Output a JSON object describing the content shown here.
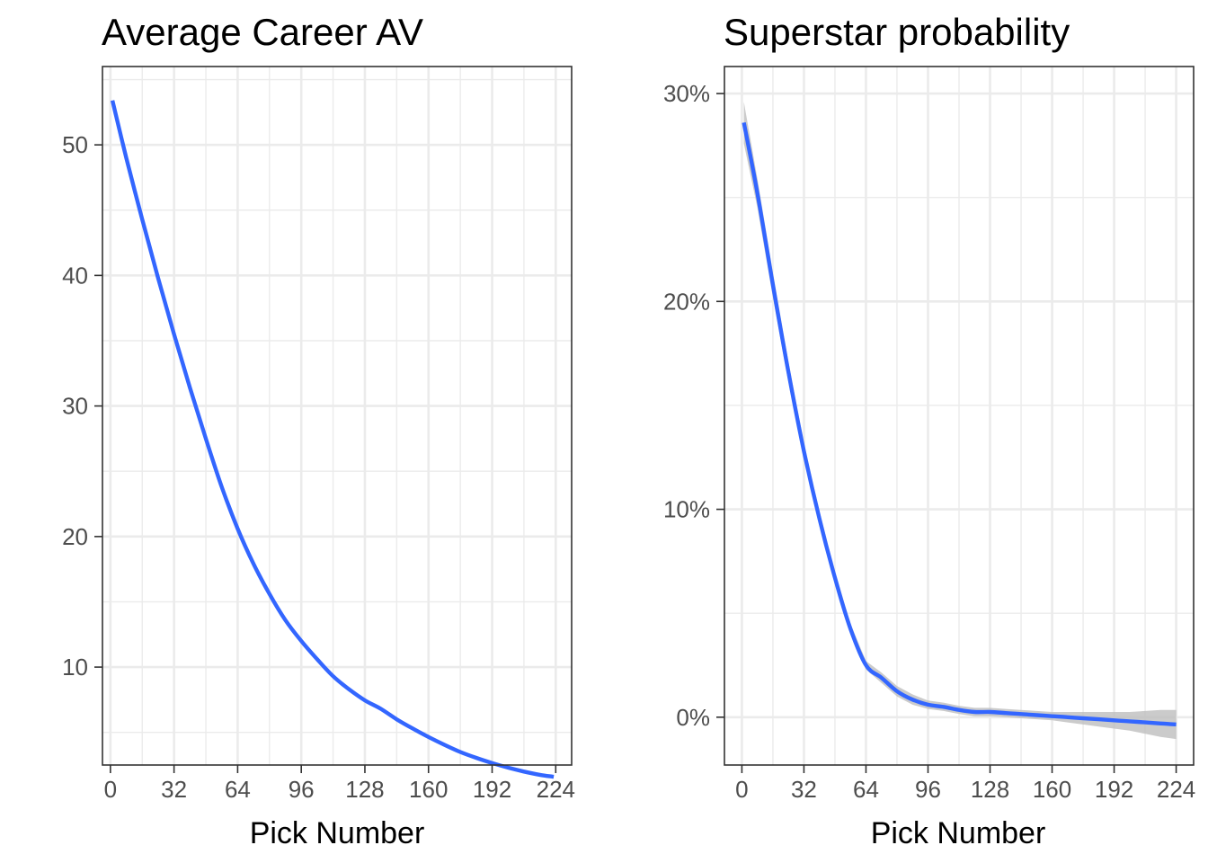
{
  "chart_data": [
    {
      "type": "line",
      "title": "Average Career AV",
      "xlabel": "Pick Number",
      "ylabel": "",
      "xlim": [
        -4,
        232
      ],
      "ylim": [
        2.5,
        56
      ],
      "x_ticks": [
        0,
        32,
        64,
        96,
        128,
        160,
        192,
        224
      ],
      "x_tick_labels": [
        "0",
        "32",
        "64",
        "96",
        "128",
        "160",
        "192",
        "224"
      ],
      "y_ticks": [
        10,
        20,
        30,
        40,
        50
      ],
      "y_tick_labels": [
        "10",
        "20",
        "30",
        "40",
        "50"
      ],
      "grid": true,
      "confidence_band": false,
      "line_color": "#3366ff",
      "series": [
        {
          "x": [
            1,
            8,
            16,
            24,
            32,
            40,
            48,
            56,
            64,
            72,
            80,
            88,
            96,
            104,
            112,
            120,
            128,
            136,
            144,
            152,
            160,
            168,
            176,
            184,
            192,
            200,
            208,
            216,
            223
          ],
          "values": [
            53.4,
            49.0,
            44.3,
            39.8,
            35.5,
            31.4,
            27.5,
            23.8,
            20.6,
            17.9,
            15.6,
            13.6,
            12.0,
            10.6,
            9.3,
            8.3,
            7.45,
            6.8,
            6.0,
            5.3,
            4.65,
            4.05,
            3.5,
            3.05,
            2.65,
            2.3,
            2.0,
            1.75,
            1.6
          ]
        }
      ]
    },
    {
      "type": "line",
      "title": "Superstar probability",
      "xlabel": "Pick Number",
      "ylabel": "",
      "xlim": [
        -9,
        233
      ],
      "ylim": [
        -2.3,
        31.3
      ],
      "x_ticks": [
        0,
        32,
        64,
        96,
        128,
        160,
        192,
        224
      ],
      "x_tick_labels": [
        "0",
        "32",
        "64",
        "96",
        "128",
        "160",
        "192",
        "224"
      ],
      "y_ticks": [
        0,
        10,
        20,
        30
      ],
      "y_tick_labels": [
        "0%",
        "10%",
        "20%",
        "30%"
      ],
      "y_unit": "percent",
      "grid": true,
      "confidence_band": true,
      "line_color": "#3366ff",
      "band_color": "#bebebe",
      "series": [
        {
          "x": [
            1,
            8,
            16,
            24,
            32,
            40,
            48,
            56,
            64,
            72,
            80,
            88,
            96,
            104,
            112,
            120,
            128,
            136,
            144,
            152,
            160,
            168,
            176,
            184,
            192,
            200,
            208,
            216,
            224
          ],
          "values": [
            28.6,
            25.2,
            20.8,
            16.6,
            12.8,
            9.55,
            6.7,
            4.25,
            2.5,
            1.9,
            1.25,
            0.85,
            0.6,
            0.5,
            0.35,
            0.25,
            0.25,
            0.2,
            0.15,
            0.1,
            0.05,
            0.0,
            -0.05,
            -0.1,
            -0.15,
            -0.2,
            -0.25,
            -0.3,
            -0.35
          ],
          "lower": [
            27.6,
            24.5,
            20.2,
            16.1,
            12.4,
            9.2,
            6.4,
            4.0,
            2.3,
            1.65,
            1.0,
            0.6,
            0.4,
            0.3,
            0.15,
            0.05,
            0.05,
            0.0,
            -0.05,
            -0.1,
            -0.15,
            -0.25,
            -0.35,
            -0.45,
            -0.55,
            -0.65,
            -0.8,
            -0.95,
            -1.05
          ],
          "upper": [
            29.6,
            25.9,
            21.4,
            17.1,
            13.2,
            9.9,
            7.0,
            4.5,
            2.7,
            2.15,
            1.5,
            1.1,
            0.8,
            0.7,
            0.55,
            0.45,
            0.45,
            0.4,
            0.35,
            0.3,
            0.25,
            0.25,
            0.25,
            0.25,
            0.25,
            0.25,
            0.3,
            0.35,
            0.35
          ]
        }
      ]
    }
  ]
}
